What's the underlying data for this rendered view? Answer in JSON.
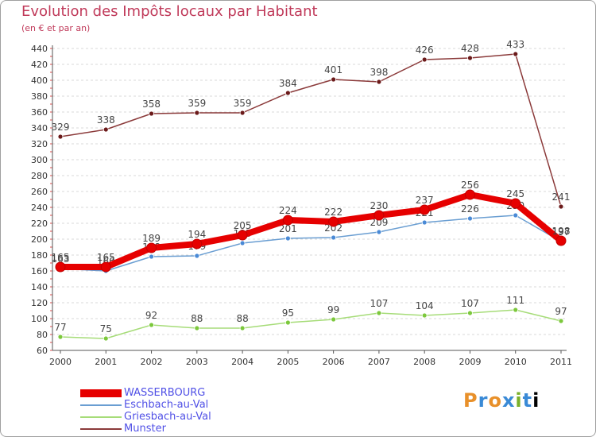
{
  "header": {
    "title": "Evolution des Impôts locaux par Habitant",
    "subtitle": "(en € et par an)"
  },
  "logo": {
    "letters": [
      "P",
      "r",
      "o",
      "x",
      "i",
      "t",
      "i"
    ]
  },
  "chart_data": {
    "type": "line",
    "title": "Evolution des Impôts locaux par Habitant",
    "subtitle": "(en € et par an)",
    "xlabel": "",
    "ylabel": "",
    "ylim": [
      60,
      440
    ],
    "ytick_step": 20,
    "yticks": [
      "60",
      "80",
      "100",
      "120",
      "140",
      "160",
      "180",
      "200",
      "220",
      "240",
      "260",
      "280",
      "300",
      "320",
      "340",
      "360",
      "380",
      "400",
      "420",
      "440"
    ],
    "categories": [
      "2000",
      "2001",
      "2002",
      "2003",
      "2004",
      "2005",
      "2006",
      "2007",
      "2008",
      "2009",
      "2010",
      "2011"
    ],
    "grid": "horizontal dashed",
    "legend_position": "bottom-left",
    "series": [
      {
        "name": "Munster",
        "color": "#8b3a3a",
        "marker_color": "#6b1a1a",
        "values": [
          329,
          338,
          358,
          359,
          359,
          384,
          401,
          398,
          426,
          428,
          433,
          241
        ],
        "labels": [
          "329",
          "338",
          "358",
          "359",
          "359",
          "384",
          "401",
          "398",
          "426",
          "428",
          "433",
          "241"
        ]
      },
      {
        "name": "Griesbach-au-Val",
        "color": "#a6dc78",
        "marker_color": "#7cc83c",
        "values": [
          77,
          75,
          92,
          88,
          88,
          95,
          99,
          107,
          104,
          107,
          111,
          97
        ],
        "labels": [
          "77",
          "75",
          "92",
          "88",
          "88",
          "95",
          "99",
          "107",
          "104",
          "107",
          "111",
          "97"
        ]
      },
      {
        "name": "Eschbach-au-Val",
        "color": "#6a9ed2",
        "marker_color": "#4a8ad6",
        "values": [
          163,
          160,
          178,
          179,
          195,
          201,
          202,
          209,
          221,
          226,
          230,
          197
        ],
        "labels": [
          "163",
          "160",
          "178",
          "179",
          "195",
          "201",
          "202",
          "209",
          "221",
          "226",
          "230",
          "197"
        ]
      },
      {
        "name": "WASSERBOURG",
        "color": "#e60000",
        "marker_color": "#e60000",
        "values": [
          165,
          165,
          189,
          194,
          205,
          224,
          222,
          230,
          237,
          256,
          245,
          198
        ],
        "labels": [
          "165",
          "165",
          "189",
          "194",
          "205",
          "224",
          "222",
          "230",
          "237",
          "256",
          "245",
          "198"
        ]
      }
    ],
    "legend": [
      "WASSERBOURG",
      "Eschbach-au-Val",
      "Griesbach-au-Val",
      "Munster"
    ],
    "legend_colors": [
      "#e60000",
      "#6a9ed2",
      "#a6dc78",
      "#8b3a3a"
    ]
  }
}
